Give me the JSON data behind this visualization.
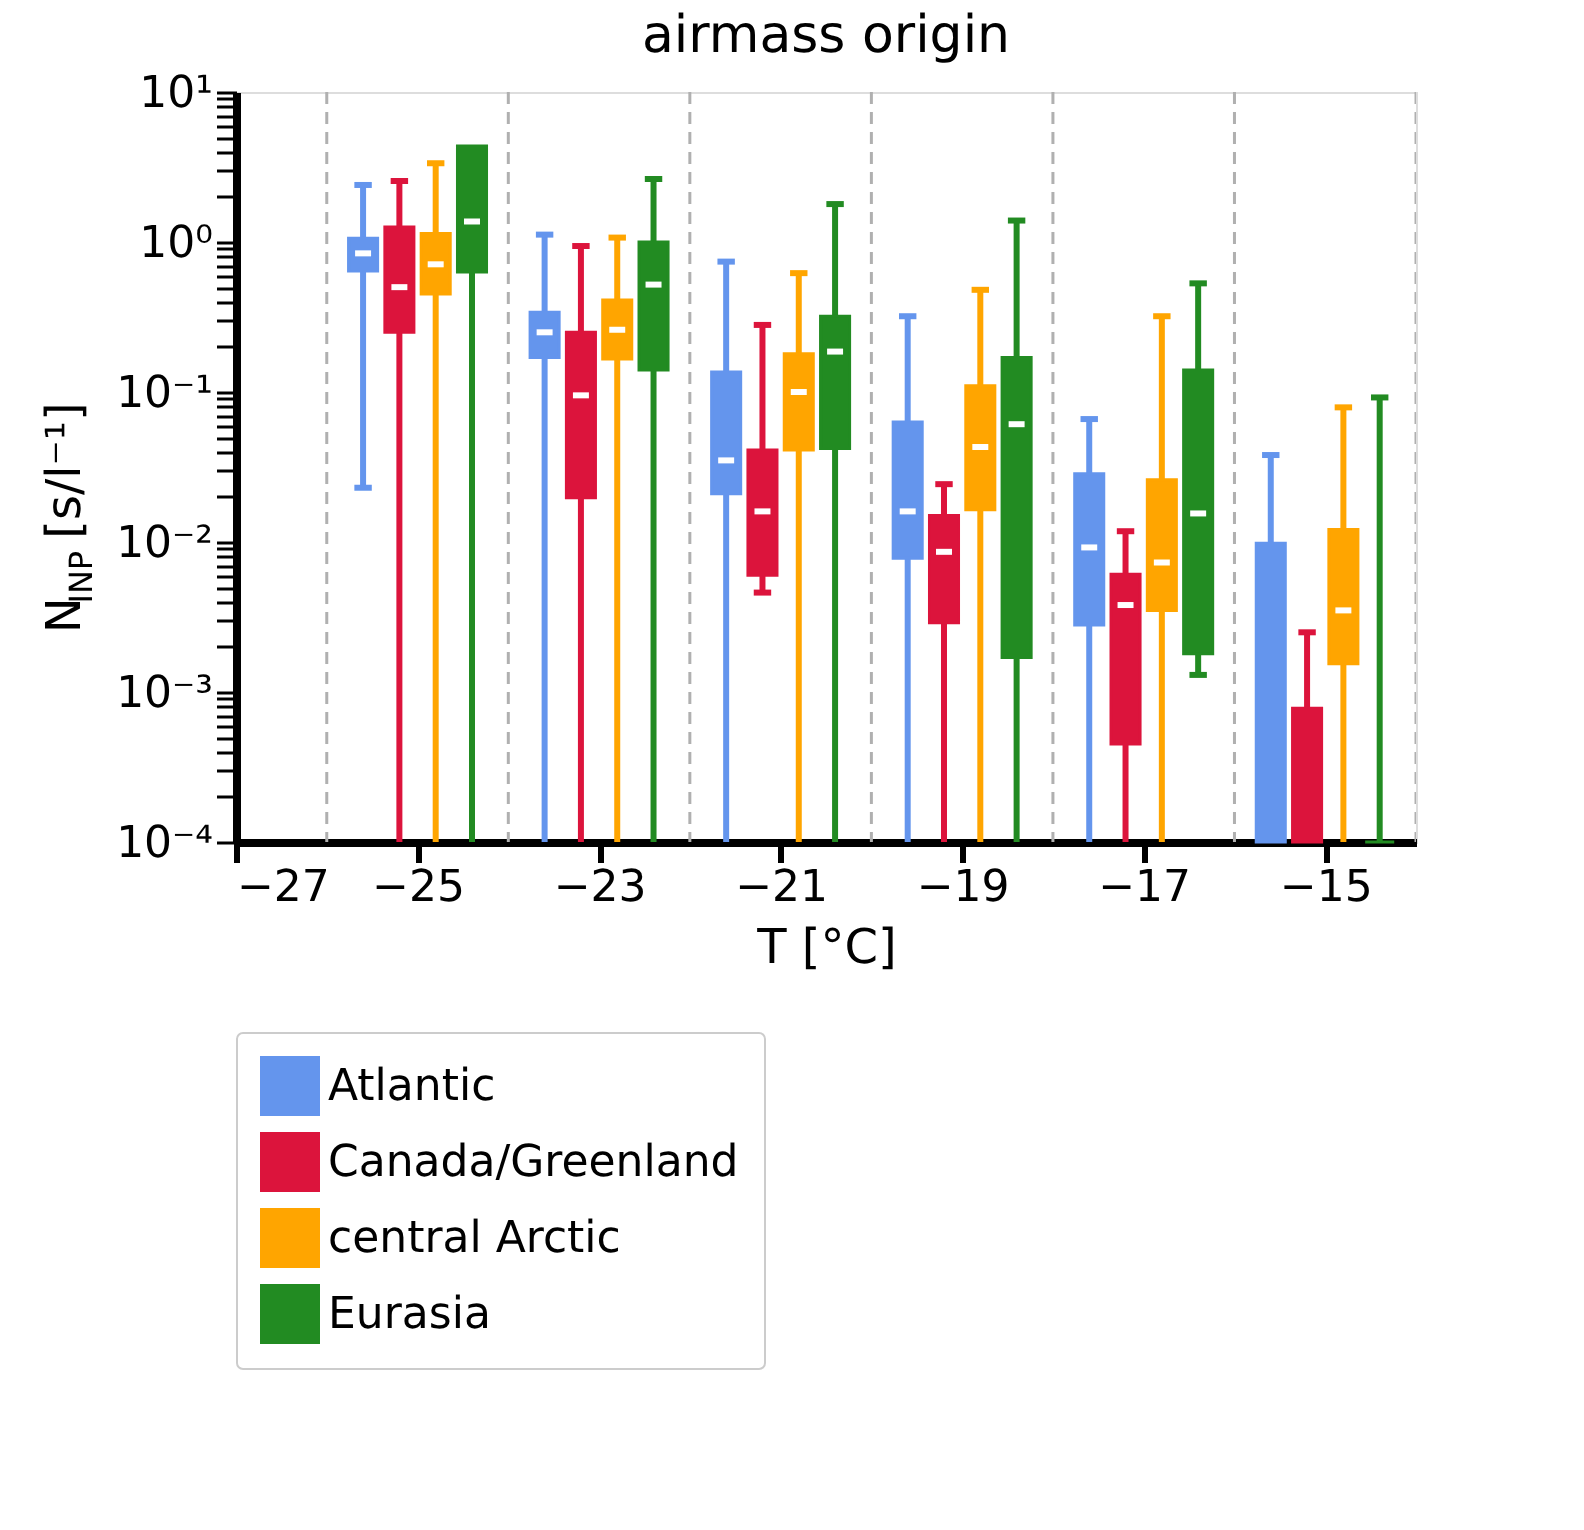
{
  "chart_data": {
    "type": "box",
    "title": "airmass origin",
    "xlabel": "T [°C]",
    "ylabel": "N$_{INP}$ [s/l⁻¹]",
    "log": "y",
    "grid": false,
    "legend": "bottom",
    "xlim": [
      -27,
      -14
    ],
    "xticks": [
      -27,
      -25,
      -23,
      -21,
      -19,
      -17,
      -15
    ],
    "ylim": [
      0.0001,
      10
    ],
    "yticks": [
      {
        "value": 0.0001,
        "label": "10⁻⁴"
      },
      {
        "value": 0.0002,
        "label": null
      },
      {
        "value": 0.0003,
        "label": null
      },
      {
        "value": 0.0004,
        "label": null
      },
      {
        "value": 0.0005,
        "label": null
      },
      {
        "value": 0.0006,
        "label": null
      },
      {
        "value": 0.0007,
        "label": null
      },
      {
        "value": 0.0008,
        "label": null
      },
      {
        "value": 0.0009,
        "label": null
      },
      {
        "value": 0.001,
        "label": "10⁻³"
      },
      {
        "value": 0.002,
        "label": null
      },
      {
        "value": 0.003,
        "label": null
      },
      {
        "value": 0.004,
        "label": null
      },
      {
        "value": 0.005,
        "label": null
      },
      {
        "value": 0.006,
        "label": null
      },
      {
        "value": 0.007,
        "label": null
      },
      {
        "value": 0.008,
        "label": null
      },
      {
        "value": 0.009,
        "label": null
      },
      {
        "value": 0.01,
        "label": "10⁻²"
      },
      {
        "value": 0.02,
        "label": null
      },
      {
        "value": 0.03,
        "label": null
      },
      {
        "value": 0.04,
        "label": null
      },
      {
        "value": 0.05,
        "label": null
      },
      {
        "value": 0.06,
        "label": null
      },
      {
        "value": 0.07,
        "label": null
      },
      {
        "value": 0.08,
        "label": null
      },
      {
        "value": 0.09,
        "label": null
      },
      {
        "value": 0.1,
        "label": "10⁻¹"
      },
      {
        "value": 0.2,
        "label": null
      },
      {
        "value": 0.3,
        "label": null
      },
      {
        "value": 0.4,
        "label": null
      },
      {
        "value": 0.5,
        "label": null
      },
      {
        "value": 0.6,
        "label": null
      },
      {
        "value": 0.7,
        "label": null
      },
      {
        "value": 0.8,
        "label": null
      },
      {
        "value": 0.9,
        "label": null
      },
      {
        "value": 1,
        "label": "10⁰"
      },
      {
        "value": 2,
        "label": null
      },
      {
        "value": 3,
        "label": null
      },
      {
        "value": 4,
        "label": null
      },
      {
        "value": 5,
        "label": null
      },
      {
        "value": 6,
        "label": null
      },
      {
        "value": 7,
        "label": null
      },
      {
        "value": 8,
        "label": null
      },
      {
        "value": 9,
        "label": null
      },
      {
        "value": 10,
        "label": "10¹"
      }
    ],
    "ref_lines": [
      {
        "axis": "x",
        "value": -26,
        "color": "#b0b0b0",
        "line_style": "dashed"
      },
      {
        "axis": "x",
        "value": -24,
        "color": "#b0b0b0",
        "line_style": "dashed"
      },
      {
        "axis": "x",
        "value": -22,
        "color": "#b0b0b0",
        "line_style": "dashed"
      },
      {
        "axis": "x",
        "value": -20,
        "color": "#b0b0b0",
        "line_style": "dashed"
      },
      {
        "axis": "x",
        "value": -18,
        "color": "#b0b0b0",
        "line_style": "dashed"
      },
      {
        "axis": "x",
        "value": -16,
        "color": "#b0b0b0",
        "line_style": "dashed"
      },
      {
        "axis": "x",
        "value": -14,
        "color": "#b0b0b0",
        "line_style": "dashed"
      }
    ],
    "series": [
      {
        "name": "Atlantic",
        "color": "#6495ed",
        "x": [
          -25.6,
          -23.6,
          -21.6,
          -19.6,
          -17.6,
          -15.6
        ],
        "boxes": [
          {
            "low": 0.023,
            "q1": 0.64,
            "median": 0.84,
            "q3": 1.06,
            "high": 2.4
          },
          {
            "low": 0.0001,
            "q1": 0.17,
            "median": 0.25,
            "q3": 0.34,
            "high": 1.12
          },
          {
            "low": 0.0001,
            "q1": 0.021,
            "median": 0.035,
            "q3": 0.136,
            "high": 0.74
          },
          {
            "low": 0.0001,
            "q1": 0.0078,
            "median": 0.016,
            "q3": 0.063,
            "high": 0.32
          },
          {
            "low": 0.0001,
            "q1": 0.0028,
            "median": 0.0092,
            "q3": 0.0285,
            "high": 0.066
          },
          {
            "low": 0.0001,
            "q1": 0.0001,
            "median": null,
            "q3": 0.0098,
            "high": 0.038
          }
        ]
      },
      {
        "name": "Canada/Greenland",
        "color": "#dc143c",
        "x": [
          -25.2,
          -23.2,
          -21.2,
          -19.2,
          -17.2,
          -15.2
        ],
        "boxes": [
          {
            "low": 0.0001,
            "q1": 0.25,
            "median": 0.5,
            "q3": 1.26,
            "high": 2.55
          },
          {
            "low": 0.0001,
            "q1": 0.0197,
            "median": 0.095,
            "q3": 0.25,
            "high": 0.94
          },
          {
            "low": 0.0046,
            "q1": 0.006,
            "median": 0.016,
            "q3": 0.041,
            "high": 0.28
          },
          {
            "low": 0.0001,
            "q1": 0.0029,
            "median": 0.0086,
            "q3": 0.015,
            "high": 0.0243
          },
          {
            "low": 0.0001,
            "q1": 0.00045,
            "median": 0.0038,
            "q3": 0.0061,
            "high": 0.0118
          },
          {
            "low": 0.0001,
            "q1": 0.0001,
            "median": null,
            "q3": 0.00078,
            "high": 0.0025
          }
        ]
      },
      {
        "name": "central Arctic",
        "color": "#ffa500",
        "x": [
          -24.8,
          -22.8,
          -20.8,
          -18.8,
          -16.8,
          -14.8
        ],
        "boxes": [
          {
            "low": 0.0001,
            "q1": 0.45,
            "median": 0.71,
            "q3": 1.14,
            "high": 3.35
          },
          {
            "low": 0.0001,
            "q1": 0.166,
            "median": 0.26,
            "q3": 0.41,
            "high": 1.07
          },
          {
            "low": 0.0001,
            "q1": 0.041,
            "median": 0.1,
            "q3": 0.18,
            "high": 0.62
          },
          {
            "low": 0.0001,
            "q1": 0.0164,
            "median": 0.043,
            "q3": 0.11,
            "high": 0.48
          },
          {
            "low": 0.0001,
            "q1": 0.0035,
            "median": 0.0073,
            "q3": 0.026,
            "high": 0.32
          },
          {
            "low": 0.0001,
            "q1": 0.00154,
            "median": 0.0035,
            "q3": 0.0121,
            "high": 0.079
          }
        ]
      },
      {
        "name": "Eurasia",
        "color": "#228b22",
        "x": [
          -24.4,
          -22.4,
          -20.4,
          -18.4,
          -16.4,
          -14.4
        ],
        "boxes": [
          {
            "low": 0.0001,
            "q1": 0.63,
            "median": 1.37,
            "q3": 4.36,
            "high": 4.36
          },
          {
            "low": 0.0001,
            "q1": 0.14,
            "median": 0.52,
            "q3": 1.0,
            "high": 2.63
          },
          {
            "low": 0.0001,
            "q1": 0.042,
            "median": 0.186,
            "q3": 0.32,
            "high": 1.79
          },
          {
            "low": 0.0001,
            "q1": 0.0017,
            "median": 0.061,
            "q3": 0.17,
            "high": 1.39
          },
          {
            "low": 0.0013,
            "q1": 0.0018,
            "median": 0.0155,
            "q3": 0.14,
            "high": 0.53
          },
          {
            "low": 0.0001,
            "q1": 0.0001,
            "median": null,
            "q3": 0.0001,
            "high": 0.092
          }
        ]
      }
    ]
  }
}
